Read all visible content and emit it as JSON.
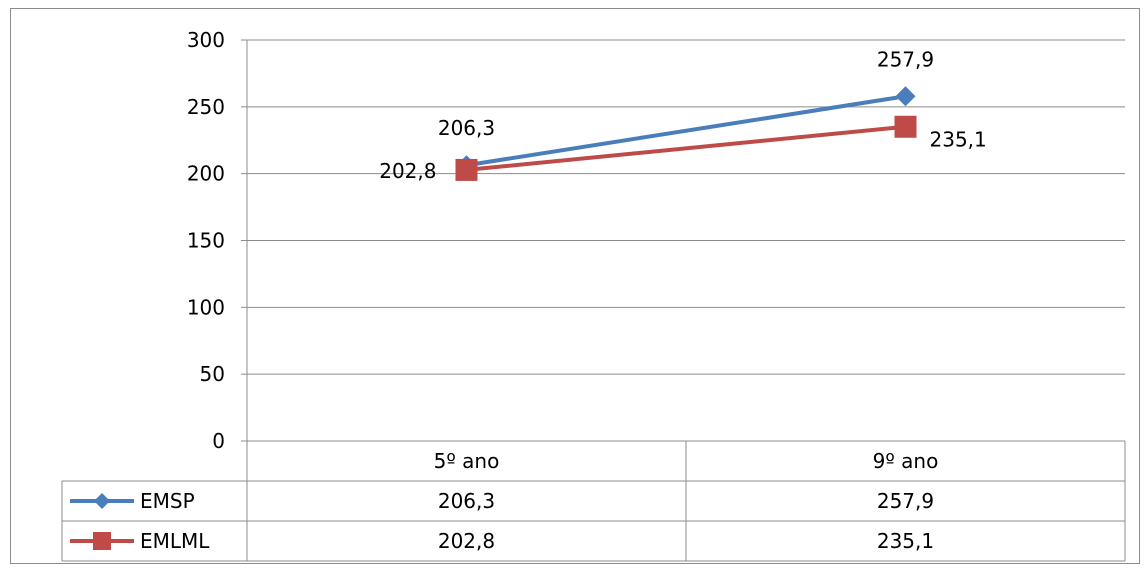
{
  "chart_data": {
    "type": "line",
    "categories": [
      "5º ano",
      "9º ano"
    ],
    "series": [
      {
        "name": "EMSP",
        "values": [
          206.3,
          257.9
        ],
        "labels": [
          "206,3",
          "257,9"
        ],
        "color": "#4A7EBB",
        "marker": "diamond"
      },
      {
        "name": "EMLML",
        "values": [
          202.8,
          235.1
        ],
        "labels": [
          "202,8",
          "235,1"
        ],
        "color": "#BE4B48",
        "marker": "square"
      }
    ],
    "yticks": [
      "0",
      "50",
      "100",
      "150",
      "200",
      "250",
      "300"
    ],
    "ylim": [
      0,
      300
    ],
    "grid": true,
    "legend": "data-table"
  }
}
